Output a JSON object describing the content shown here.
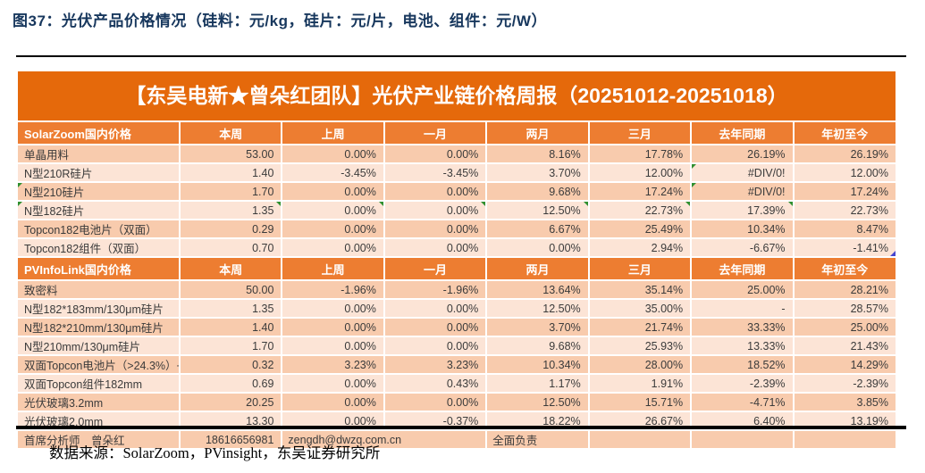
{
  "figure": {
    "title": "图37：光伏产品价格情况（硅料：元/kg，硅片：元/片，电池、组件：元/W）",
    "source": "数据来源：SolarZoom，PVinsight，东吴证券研究所"
  },
  "banner": {
    "text": "【东吴电新★曾朵红团队】光伏产业链价格周报（20251012-20251018）"
  },
  "colors": {
    "banner_bg": "#E5690B",
    "section_header_bg": "#ED7D31",
    "row_dark": "#F8CBAD",
    "row_light": "#FCE4D6",
    "title_text": "#17375D",
    "error_mark_green": "#2f8f2f",
    "corner_mark_blue": "#4545cf"
  },
  "table": {
    "columns": [
      "本周",
      "上周",
      "一月",
      "两月",
      "三月",
      "去年同期",
      "年初至今"
    ],
    "sections": [
      {
        "header": "SolarZoom国内价格",
        "rows": [
          {
            "label": "单晶用料",
            "values": [
              "53.00",
              "0.00%",
              "0.00%",
              "8.16%",
              "17.78%",
              "26.19%",
              "26.19%"
            ]
          },
          {
            "label": "N型210R硅片",
            "values": [
              "1.40",
              "-3.45%",
              "-3.45%",
              "3.70%",
              "12.00%",
              "#DIV/0!",
              "12.00%"
            ],
            "mark_cols": [
              5
            ]
          },
          {
            "label": "N型210硅片",
            "values": [
              "1.70",
              "0.00%",
              "0.00%",
              "9.68%",
              "17.24%",
              "#DIV/0!",
              "17.24%"
            ],
            "mark_label": true,
            "mark_cols": [
              5
            ]
          },
          {
            "label": "N型182硅片",
            "values": [
              "1.35",
              "0.00%",
              "0.00%",
              "12.50%",
              "22.73%",
              "17.39%",
              "22.73%"
            ],
            "mark_label": true,
            "mark_cols": [
              0,
              1,
              2,
              3,
              4,
              5
            ]
          },
          {
            "label": "Topcon182电池片（双面）",
            "values": [
              "0.29",
              "0.00%",
              "0.00%",
              "6.67%",
              "25.49%",
              "10.34%",
              "8.47%"
            ]
          },
          {
            "label": "Topcon182组件（双面）",
            "values": [
              "0.70",
              "0.00%",
              "0.00%",
              "0.00%",
              "2.94%",
              "-6.67%",
              "-1.41%"
            ],
            "blue_mark_last": true
          }
        ]
      },
      {
        "header": "PVInfoLink国内价格",
        "rows": [
          {
            "label": "致密料",
            "values": [
              "50.00",
              "-1.96%",
              "-1.96%",
              "13.64%",
              "35.14%",
              "25.00%",
              "28.21%"
            ]
          },
          {
            "label": "N型182*183mm/130μm硅片",
            "values": [
              "1.35",
              "0.00%",
              "0.00%",
              "12.50%",
              "35.00%",
              "-",
              "28.57%"
            ]
          },
          {
            "label": "N型182*210mm/130μm硅片",
            "values": [
              "1.40",
              "0.00%",
              "0.00%",
              "3.70%",
              "21.74%",
              "33.33%",
              "25.00%"
            ]
          },
          {
            "label": "N型210mm/130μm硅片",
            "values": [
              "1.70",
              "0.00%",
              "0.00%",
              "9.68%",
              "25.93%",
              "13.33%",
              "21.43%"
            ]
          },
          {
            "label": "双面Topcon电池片（>24.3%）+",
            "values": [
              "0.32",
              "3.23%",
              "3.23%",
              "10.34%",
              "28.00%",
              "18.52%",
              "14.29%"
            ]
          },
          {
            "label": "双面Topcon组件182mm",
            "values": [
              "0.69",
              "0.00%",
              "0.43%",
              "1.17%",
              "1.91%",
              "-2.39%",
              "-2.39%"
            ]
          },
          {
            "label": "光伏玻璃3.2mm",
            "values": [
              "20.25",
              "0.00%",
              "0.00%",
              "12.50%",
              "15.71%",
              "-4.71%",
              "3.85%"
            ]
          },
          {
            "label": "光伏玻璃2.0mm",
            "values": [
              "13.30",
              "0.00%",
              "-0.37%",
              "18.22%",
              "26.67%",
              "6.40%",
              "13.19%"
            ]
          }
        ]
      }
    ],
    "analyst_row": {
      "label": "首席分析师　曾朵红",
      "phone": "18616656981",
      "email": "zengdh@dwzq.com.cn",
      "note": "全面负责"
    }
  }
}
